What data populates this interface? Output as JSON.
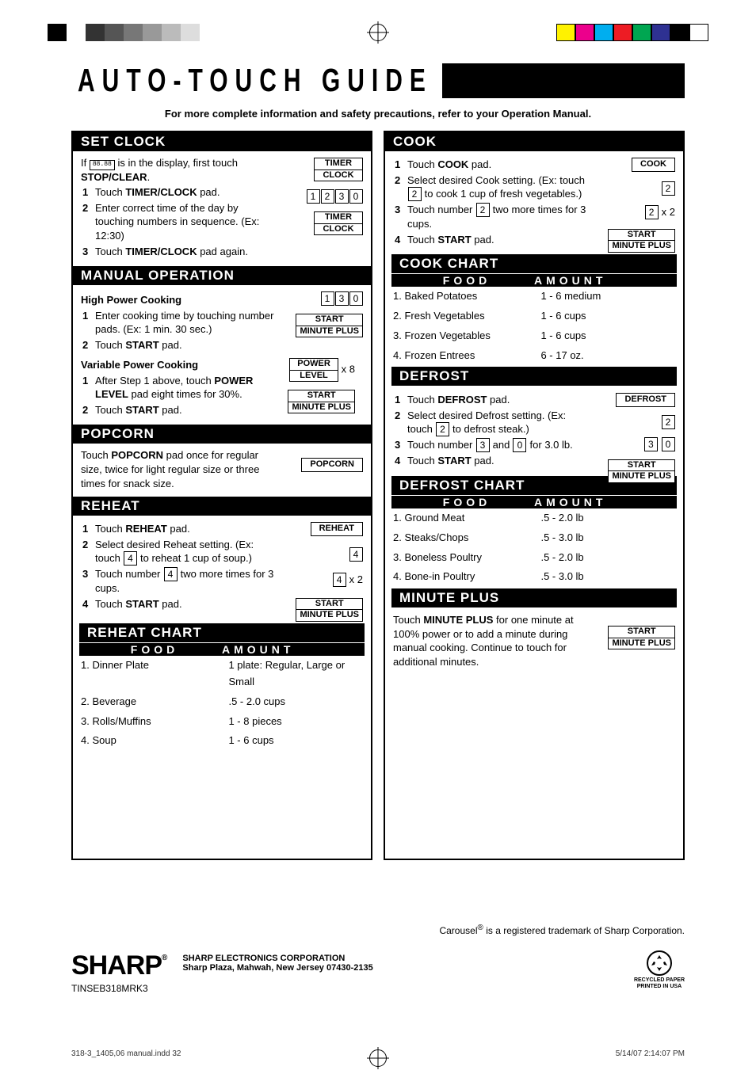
{
  "regmarks": {
    "grays": [
      "#000",
      "#fff",
      "#333",
      "#555",
      "#777",
      "#999",
      "#bbb",
      "#ddd",
      "#fff",
      "#fff"
    ],
    "colors": [
      "#fff200",
      "#ec008c",
      "#00aeef",
      "#ed1c24",
      "#00a651",
      "#2e3192",
      "#000000",
      "#fff"
    ]
  },
  "title": "AUTO-TOUCH GUIDE",
  "subtitle": "For more complete information and safety precautions, refer to your Operation Manual.",
  "left": {
    "set_clock": {
      "header": "SET CLOCK",
      "intro_1": "If ",
      "intro_digits": "88.88",
      "intro_2": " is in the display, first touch ",
      "intro_bold": "STOP/CLEAR",
      "intro_3": ".",
      "step1_a": "Touch ",
      "step1_bold": "TIMER/CLOCK",
      "step1_b": " pad.",
      "step2": "Enter correct time of the day by touching numbers in sequence. (Ex: 12:30)",
      "step3_a": "Touch ",
      "step3_bold": "TIMER/CLOCK",
      "step3_b": " pad again.",
      "btn_top": "TIMER",
      "btn_bot": "CLOCK",
      "numseq": [
        "1",
        "2",
        "3",
        "0"
      ]
    },
    "manual": {
      "header": "MANUAL OPERATION",
      "sub1": "High Power Cooking",
      "s1_a": "Enter cooking time by touching number pads. (Ex: 1 min. 30 sec.)",
      "s1_b_a": "Touch ",
      "s1_b_bold": "START",
      "s1_b_b": " pad.",
      "numseq": [
        "1",
        "3",
        "0"
      ],
      "start_btn_top": "START",
      "start_btn_bot": "MINUTE PLUS",
      "sub2": "Variable Power Cooking",
      "s2_a_a": "After Step 1 above, touch ",
      "s2_a_bold": "POWER LEVEL",
      "s2_a_b": " pad eight times for 30%.",
      "s2_b_a": "Touch ",
      "s2_b_bold": "START",
      "s2_b_b": " pad.",
      "power_btn_top": "POWER",
      "power_btn_bot": "LEVEL",
      "power_suffix": "x 8"
    },
    "popcorn": {
      "header": "POPCORN",
      "text_a": "Touch ",
      "text_bold": "POPCORN",
      "text_b": " pad once for regular size, twice for light regular size or three times for snack size.",
      "btn": "POPCORN"
    },
    "reheat": {
      "header": "REHEAT",
      "s1_a": "Touch ",
      "s1_bold": "REHEAT",
      "s1_b": " pad.",
      "s2_a": "Select desired Reheat setting. (Ex: touch ",
      "s2_key": "4",
      "s2_b": " to reheat 1 cup of soup.)",
      "s3_a": "Touch number ",
      "s3_key": "4",
      "s3_b": " two more times for 3 cups.",
      "s4_a": "Touch ",
      "s4_bold": "START",
      "s4_b": " pad.",
      "btn": "REHEAT",
      "key4": "4",
      "key4x2_suffix": "x 2",
      "start_btn_top": "START",
      "start_btn_bot": "MINUTE PLUS"
    },
    "reheat_chart": {
      "header": "REHEAT CHART",
      "col1": "FOOD",
      "col2": "AMOUNT",
      "rows": [
        {
          "food": "1. Dinner Plate",
          "amount": "1 plate: Regular, Large or Small"
        },
        {
          "food": "2. Beverage",
          "amount": ".5 - 2.0 cups"
        },
        {
          "food": "3. Rolls/Muffins",
          "amount": "1 - 8 pieces"
        },
        {
          "food": "4. Soup",
          "amount": "1 - 6 cups"
        }
      ]
    }
  },
  "right": {
    "cook": {
      "header": "COOK",
      "s1_a": "Touch ",
      "s1_bold": "COOK",
      "s1_b": " pad.",
      "s2_a": "Select desired Cook setting. (Ex: touch ",
      "s2_key": "2",
      "s2_b": " to cook 1 cup of fresh vegetables.)",
      "s3_a": "Touch number ",
      "s3_key": "2",
      "s3_b": " two more times for 3 cups.",
      "s4_a": "Touch ",
      "s4_bold": "START",
      "s4_b": " pad.",
      "btn": "COOK",
      "key2": "2",
      "key2x2_suffix": "x 2",
      "start_btn_top": "START",
      "start_btn_bot": "MINUTE PLUS"
    },
    "cook_chart": {
      "header": "COOK CHART",
      "col1": "FOOD",
      "col2": "AMOUNT",
      "rows": [
        {
          "food": "1. Baked Potatoes",
          "amount": "1 - 6 medium"
        },
        {
          "food": "2. Fresh Vegetables",
          "amount": "1 - 6 cups"
        },
        {
          "food": "3. Frozen Vegetables",
          "amount": "1 - 6 cups"
        },
        {
          "food": "4. Frozen Entrees",
          "amount": "6 - 17 oz."
        }
      ]
    },
    "defrost": {
      "header": "DEFROST",
      "s1_a": "Touch ",
      "s1_bold": "DEFROST",
      "s1_b": " pad.",
      "s2_a": "Select desired Defrost setting. (Ex: touch ",
      "s2_key": "2",
      "s2_b": " to defrost steak.)",
      "s3_a": "Touch number ",
      "s3_key1": "3",
      "s3_mid": " and ",
      "s3_key2": "0",
      "s3_b": " for 3.0 lb.",
      "s4_a": "Touch ",
      "s4_bold": "START",
      "s4_b": " pad.",
      "btn": "DEFROST",
      "key2": "2",
      "start_btn_top": "START",
      "start_btn_bot": "MINUTE PLUS"
    },
    "defrost_chart": {
      "header": "DEFROST CHART",
      "col1": "FOOD",
      "col2": "AMOUNT",
      "rows": [
        {
          "food": "1. Ground Meat",
          "amount": ".5 - 2.0 lb"
        },
        {
          "food": "2. Steaks/Chops",
          "amount": ".5 - 3.0 lb"
        },
        {
          "food": "3. Boneless Poultry",
          "amount": ".5 - 2.0 lb"
        },
        {
          "food": "4. Bone-in Poultry",
          "amount": ".5 - 3.0 lb"
        }
      ]
    },
    "minute_plus": {
      "header": "MINUTE PLUS",
      "text_a": "Touch ",
      "text_bold": "MINUTE PLUS",
      "text_b": " for one minute at 100% power or to add a minute during manual cooking. Continue to touch for additional minutes.",
      "start_btn_top": "START",
      "start_btn_bot": "MINUTE PLUS"
    }
  },
  "footer": {
    "trademark_a": "Carousel",
    "trademark_sup": "®",
    "trademark_b": " is a registered trademark of Sharp Corporation.",
    "logo": "SHARP",
    "logo_sup": "®",
    "partno": "TINSEB318MRK3",
    "corp1": "SHARP ELECTRONICS CORPORATION",
    "corp2": "Sharp Plaza, Mahwah, New Jersey 07430-2135",
    "recycled1": "RECYCLED PAPER",
    "recycled2": "PRINTED IN USA"
  },
  "pagefoot": {
    "left": "318-3_1405,06 manual.indd   32",
    "right": "5/14/07   2:14:07 PM"
  }
}
